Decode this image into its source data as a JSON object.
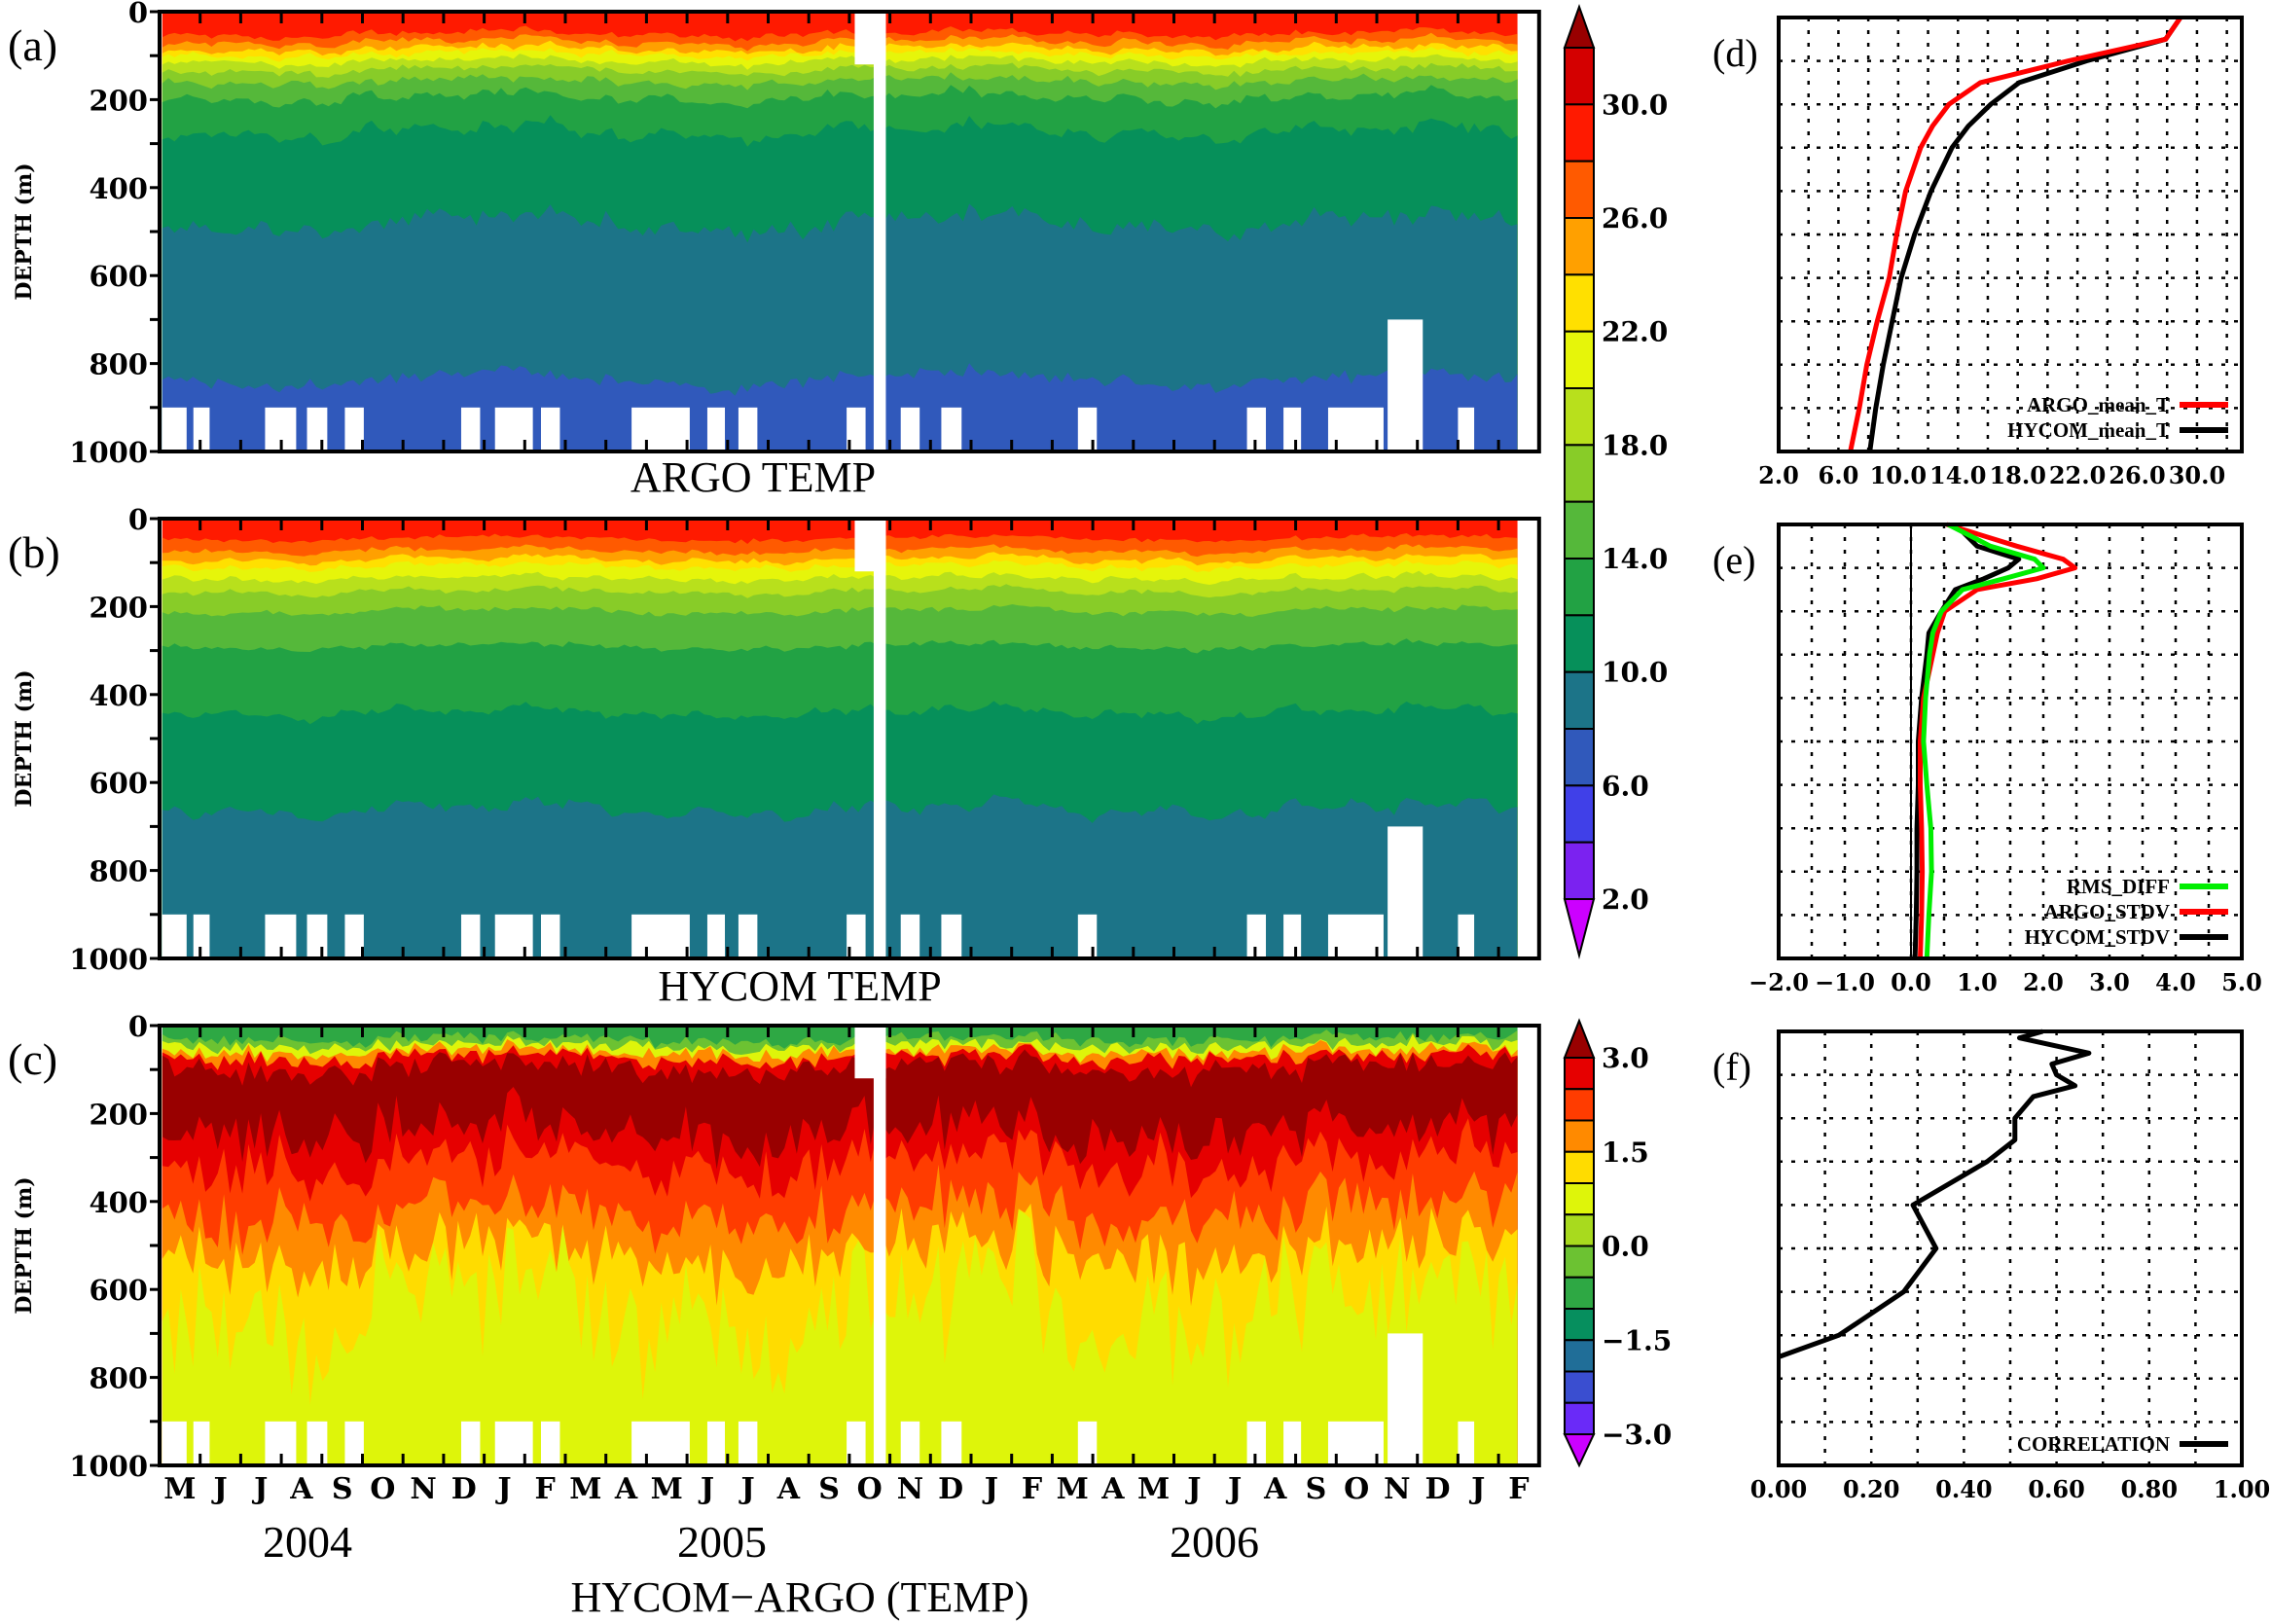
{
  "figure": {
    "month_labels": [
      "M",
      "J",
      "J",
      "A",
      "S",
      "O",
      "N",
      "D",
      "J",
      "F",
      "M",
      "A",
      "M",
      "J",
      "J",
      "A",
      "S",
      "O",
      "N",
      "D",
      "J",
      "F",
      "M",
      "A",
      "M",
      "J",
      "J",
      "A",
      "S",
      "O",
      "N",
      "D",
      "J",
      "F"
    ],
    "year_labels": [
      "2004",
      "2005",
      "2006"
    ],
    "bottom_title": "HYCOM−ARGO (TEMP)",
    "depth_ticks": [
      "0",
      "200",
      "400",
      "600",
      "800",
      "1000"
    ],
    "depth_axis_label": "DEPTH (m)"
  },
  "colorbars": {
    "temperature": {
      "tick_labels": [
        "30.0",
        "26.0",
        "22.0",
        "18.0",
        "14.0",
        "10.0",
        "6.0",
        "2.0"
      ],
      "levels_top_to_bottom": [
        32,
        30,
        28,
        26,
        24,
        22,
        20,
        18,
        16,
        14,
        12,
        10,
        8,
        6,
        4,
        2
      ],
      "colors_top_to_bottom": [
        "#d40000",
        "#ff1a00",
        "#ff5a00",
        "#ffa000",
        "#ffe000",
        "#e6f50a",
        "#b8e01c",
        "#88cc28",
        "#55b83a",
        "#22a244",
        "#06905a",
        "#1c7488",
        "#3059bb",
        "#4040e8",
        "#7b22f0"
      ],
      "over_color": "#990000",
      "under_color": "#cc00ff"
    },
    "difference": {
      "tick_labels": [
        "3.0",
        "1.5",
        "0.0",
        "−1.5",
        "−3.0"
      ],
      "levels_top_to_bottom": [
        3.0,
        2.5,
        2.0,
        1.5,
        1.0,
        0.5,
        0.0,
        -0.5,
        -1.0,
        -1.5,
        -2.0,
        -2.5,
        -3.0
      ],
      "colors_top_to_bottom": [
        "#e60000",
        "#ff3c00",
        "#ff8a00",
        "#ffdc00",
        "#def50a",
        "#a8da1e",
        "#6cc232",
        "#2ea844",
        "#068f5e",
        "#206e98",
        "#3a4ed0",
        "#6a2af8"
      ],
      "over_color": "#990000",
      "under_color": "#cc00ff"
    }
  },
  "chart_data": [
    {
      "panel_label": "(a)",
      "type": "heatmap",
      "title": "ARGO TEMP",
      "ylabel": "DEPTH (m)",
      "ylim": [
        1000,
        0
      ],
      "x_range": [
        "2004-05-01",
        "2007-03-01"
      ],
      "data_extent": [
        "2004-05-03",
        "2007-02-15"
      ],
      "colorbar": "temperature",
      "surface_color": "#ff1a00",
      "isolines": [
        {
          "level": 28,
          "mean_depth_m": 50,
          "variability_m": 14,
          "below_color": "#ff5a00"
        },
        {
          "level": 26,
          "mean_depth_m": 68,
          "variability_m": 14,
          "below_color": "#ffa000"
        },
        {
          "level": 24,
          "mean_depth_m": 84,
          "variability_m": 14,
          "below_color": "#ffe000"
        },
        {
          "level": 22,
          "mean_depth_m": 96,
          "variability_m": 14,
          "below_color": "#e6f50a"
        },
        {
          "level": 20,
          "mean_depth_m": 112,
          "variability_m": 14,
          "below_color": "#b8e01c"
        },
        {
          "level": 18,
          "mean_depth_m": 132,
          "variability_m": 15,
          "below_color": "#88cc28"
        },
        {
          "level": 16,
          "mean_depth_m": 158,
          "variability_m": 17,
          "below_color": "#55b83a"
        },
        {
          "level": 14,
          "mean_depth_m": 195,
          "variability_m": 20,
          "below_color": "#22a244"
        },
        {
          "level": 12,
          "mean_depth_m": 272,
          "variability_m": 26,
          "below_color": "#06905a"
        },
        {
          "level": 10,
          "mean_depth_m": 480,
          "variability_m": 40,
          "below_color": "#1c7488"
        },
        {
          "level": 8,
          "mean_depth_m": 835,
          "variability_m": 32,
          "below_color": "#3059bb"
        }
      ]
    },
    {
      "panel_label": "(b)",
      "type": "heatmap",
      "title": "HYCOM TEMP",
      "ylabel": "DEPTH (m)",
      "ylim": [
        1000,
        0
      ],
      "x_range": [
        "2004-05-01",
        "2007-03-01"
      ],
      "data_extent": [
        "2004-05-03",
        "2007-02-15"
      ],
      "colorbar": "temperature",
      "surface_color": "#ff1a00",
      "isolines": [
        {
          "level": 28,
          "mean_depth_m": 45,
          "variability_m": 12,
          "below_color": "#ff5a00"
        },
        {
          "level": 26,
          "mean_depth_m": 72,
          "variability_m": 12,
          "below_color": "#ffa000"
        },
        {
          "level": 24,
          "mean_depth_m": 92,
          "variability_m": 12,
          "below_color": "#ffe000"
        },
        {
          "level": 22,
          "mean_depth_m": 108,
          "variability_m": 12,
          "below_color": "#e6f50a"
        },
        {
          "level": 20,
          "mean_depth_m": 135,
          "variability_m": 12,
          "below_color": "#b8e01c"
        },
        {
          "level": 18,
          "mean_depth_m": 165,
          "variability_m": 12,
          "below_color": "#88cc28"
        },
        {
          "level": 16,
          "mean_depth_m": 210,
          "variability_m": 14,
          "below_color": "#55b83a"
        },
        {
          "level": 14,
          "mean_depth_m": 290,
          "variability_m": 14,
          "below_color": "#22a244"
        },
        {
          "level": 12,
          "mean_depth_m": 440,
          "variability_m": 18,
          "below_color": "#06905a"
        },
        {
          "level": 10,
          "mean_depth_m": 660,
          "variability_m": 25,
          "below_color": "#1c7488"
        }
      ]
    },
    {
      "panel_label": "(c)",
      "type": "heatmap",
      "title": "HYCOM−ARGO (TEMP)",
      "ylabel": "DEPTH (m)",
      "ylim": [
        1000,
        0
      ],
      "x_range": [
        "2004-05-01",
        "2007-03-01"
      ],
      "data_extent": [
        "2004-05-03",
        "2007-02-15"
      ],
      "colorbar": "difference",
      "surface_color": "#2ea844",
      "isolines": [
        {
          "level": -0.5,
          "mean_depth_m": 30,
          "variability_m": 14,
          "below_color": "#6cc232"
        },
        {
          "level": 0.5,
          "mean_depth_m": 45,
          "variability_m": 16,
          "below_color": "#def50a"
        },
        {
          "level": 1.5,
          "mean_depth_m": 58,
          "variability_m": 18,
          "below_color": "#ff8a00"
        },
        {
          "level": 2.5,
          "mean_depth_m": 72,
          "variability_m": 20,
          "below_color": "#e60000"
        },
        {
          "level": 3.0,
          "mean_depth_m": 95,
          "variability_m": 30,
          "below_color": "#990000"
        },
        {
          "level": 3.0,
          "mean_depth_m": 240,
          "variability_m": 55,
          "below_color": "#e60000"
        },
        {
          "level": 2.5,
          "mean_depth_m": 310,
          "variability_m": 60,
          "below_color": "#ff3c00"
        },
        {
          "level": 2.0,
          "mean_depth_m": 420,
          "variability_m": 70,
          "below_color": "#ff8a00"
        },
        {
          "level": 1.5,
          "mean_depth_m": 520,
          "variability_m": 80,
          "below_color": "#ffdc00"
        },
        {
          "level": 1.0,
          "mean_depth_m": 640,
          "variability_m": 140,
          "below_color": "#def50a"
        }
      ]
    },
    {
      "panel_label": "(d)",
      "type": "line",
      "xlim": [
        2,
        33
      ],
      "x_ticks": [
        2,
        6,
        10,
        14,
        18,
        22,
        26,
        30
      ],
      "x_tick_labels": [
        "2.0",
        "6.0",
        "10.0",
        "14.0",
        "18.0",
        "22.0",
        "26.0",
        "30.0"
      ],
      "x_grid_step": 2,
      "ylim": [
        1000,
        0
      ],
      "grid": true,
      "legend": "bottom-right",
      "depth_m": [
        0,
        50,
        100,
        150,
        200,
        250,
        300,
        400,
        500,
        600,
        700,
        800,
        900,
        1000
      ],
      "series": [
        {
          "name": "HYCOM_mean_T",
          "color": "#000000",
          "values": [
            28.9,
            27.9,
            22.6,
            18.1,
            16.2,
            14.7,
            13.6,
            12.2,
            11.1,
            10.2,
            9.6,
            9.0,
            8.5,
            8.1
          ]
        },
        {
          "name": "ARGO_mean_T",
          "color": "#ff0000",
          "values": [
            28.9,
            27.9,
            21.4,
            15.5,
            13.4,
            12.3,
            11.5,
            10.5,
            9.9,
            9.4,
            8.6,
            7.9,
            7.4,
            6.8
          ]
        }
      ]
    },
    {
      "panel_label": "(e)",
      "type": "line",
      "xlim": [
        -2,
        5
      ],
      "x_ticks": [
        -2,
        -1,
        0,
        1,
        2,
        3,
        4,
        5
      ],
      "x_tick_labels": [
        "−2.0",
        "−1.0",
        "0.0",
        "1.0",
        "2.0",
        "3.0",
        "4.0",
        "5.0"
      ],
      "x_grid_step": 0.5,
      "zero_line": true,
      "ylim": [
        1000,
        0
      ],
      "grid": true,
      "legend": "bottom-right",
      "depth_m": [
        0,
        50,
        80,
        100,
        125,
        150,
        200,
        250,
        300,
        400,
        500,
        600,
        700,
        800,
        900,
        1000
      ],
      "series": [
        {
          "name": "HYCOM_STDV",
          "color": "#000000",
          "values": [
            0.67,
            1.0,
            1.63,
            1.47,
            1.1,
            0.67,
            0.46,
            0.27,
            0.24,
            0.16,
            0.11,
            0.11,
            0.09,
            0.09,
            0.08,
            0.06
          ]
        },
        {
          "name": "ARGO_STDV",
          "color": "#ff0000",
          "values": [
            0.54,
            1.6,
            2.3,
            2.48,
            1.9,
            1.0,
            0.51,
            0.4,
            0.33,
            0.19,
            0.14,
            0.14,
            0.16,
            0.17,
            0.16,
            0.14
          ]
        },
        {
          "name": "RMS_DIFF",
          "color": "#00ee00",
          "values": [
            0.56,
            1.2,
            1.87,
            2.0,
            1.4,
            0.78,
            0.46,
            0.33,
            0.28,
            0.22,
            0.19,
            0.24,
            0.3,
            0.31,
            0.27,
            0.24
          ]
        }
      ],
      "legend_order": [
        "RMS_DIFF",
        "ARGO_STDV",
        "HYCOM_STDV"
      ]
    },
    {
      "panel_label": "(f)",
      "type": "line",
      "xlim": [
        0,
        1
      ],
      "x_ticks": [
        0,
        0.2,
        0.4,
        0.6,
        0.8,
        1.0
      ],
      "x_tick_labels": [
        "0.00",
        "0.20",
        "0.40",
        "0.60",
        "0.80",
        "1.00"
      ],
      "x_grid_step": 0.1,
      "ylim": [
        1000,
        0
      ],
      "grid": true,
      "legend": "bottom-right",
      "depth_m": [
        0,
        15,
        50,
        75,
        100,
        125,
        150,
        200,
        250,
        300,
        400,
        500,
        600,
        700,
        750
      ],
      "series": [
        {
          "name": "CORRELATION",
          "color": "#000000",
          "values": [
            0.57,
            0.52,
            0.67,
            0.59,
            0.6,
            0.64,
            0.55,
            0.51,
            0.51,
            0.45,
            0.29,
            0.34,
            0.27,
            0.13,
            0.0
          ]
        }
      ]
    }
  ],
  "missing_data": [
    {
      "from": "2004-05-03",
      "to": "2004-05-21",
      "depth_m": [
        900,
        1000
      ]
    },
    {
      "from": "2004-05-26",
      "to": "2004-06-08",
      "depth_m": [
        900,
        1000
      ]
    },
    {
      "from": "2004-07-19",
      "to": "2004-08-12",
      "depth_m": [
        900,
        1000
      ]
    },
    {
      "from": "2004-08-20",
      "to": "2004-09-05",
      "depth_m": [
        900,
        1000
      ]
    },
    {
      "from": "2004-09-18",
      "to": "2004-10-02",
      "depth_m": [
        900,
        1000
      ]
    },
    {
      "from": "2004-12-14",
      "to": "2004-12-28",
      "depth_m": [
        900,
        1000
      ]
    },
    {
      "from": "2005-01-09",
      "to": "2005-02-07",
      "depth_m": [
        900,
        1000
      ]
    },
    {
      "from": "2005-02-13",
      "to": "2005-02-27",
      "depth_m": [
        900,
        1000
      ]
    },
    {
      "from": "2005-04-20",
      "to": "2005-06-03",
      "depth_m": [
        900,
        1000
      ]
    },
    {
      "from": "2005-06-16",
      "to": "2005-06-29",
      "depth_m": [
        900,
        1000
      ]
    },
    {
      "from": "2005-07-09",
      "to": "2005-07-23",
      "depth_m": [
        900,
        1000
      ]
    },
    {
      "from": "2005-09-29",
      "to": "2005-10-13",
      "depth_m": [
        900,
        1000
      ]
    },
    {
      "from": "2005-10-05",
      "to": "2005-10-28",
      "depth_m": [
        0,
        120
      ]
    },
    {
      "from": "2005-10-19",
      "to": "2005-10-28",
      "depth_m": [
        0,
        1000
      ]
    },
    {
      "from": "2005-11-09",
      "to": "2005-11-23",
      "depth_m": [
        900,
        1000
      ]
    },
    {
      "from": "2005-12-09",
      "to": "2005-12-24",
      "depth_m": [
        900,
        1000
      ]
    },
    {
      "from": "2006-03-20",
      "to": "2006-04-04",
      "depth_m": [
        900,
        1000
      ]
    },
    {
      "from": "2006-07-25",
      "to": "2006-08-09",
      "depth_m": [
        900,
        1000
      ]
    },
    {
      "from": "2006-08-22",
      "to": "2006-09-05",
      "depth_m": [
        900,
        1000
      ]
    },
    {
      "from": "2006-09-25",
      "to": "2006-11-06",
      "depth_m": [
        900,
        1000
      ]
    },
    {
      "from": "2006-11-09",
      "to": "2006-12-05",
      "depth_m": [
        700,
        1000
      ]
    },
    {
      "from": "2006-12-31",
      "to": "2007-01-13",
      "depth_m": [
        900,
        1000
      ]
    }
  ]
}
